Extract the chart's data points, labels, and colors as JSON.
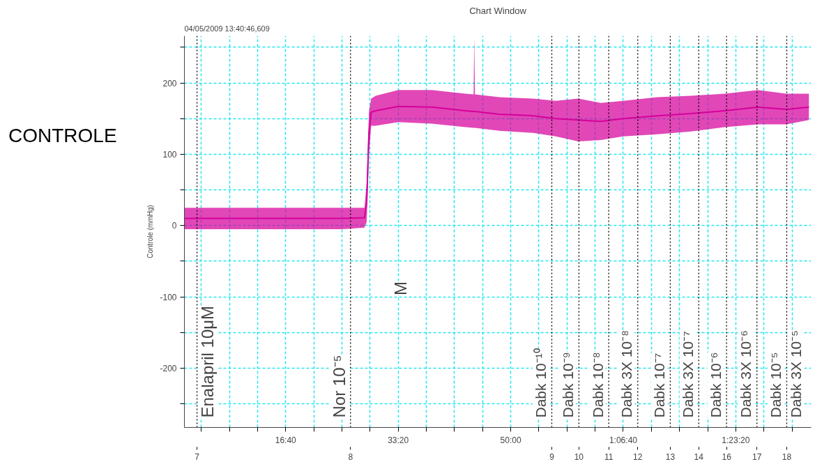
{
  "chart_data": {
    "type": "line",
    "title": "Chart Window",
    "subtitle": "04/05/2009 13:40:46,609",
    "ylabel": "Controle (mmHg)",
    "x": [
      100,
      500,
      1000,
      1500,
      1700,
      1720,
      1740,
      1760,
      1800,
      2000,
      2300,
      2600,
      2670,
      2676,
      2682,
      2900,
      3200,
      3400,
      3600,
      3800,
      4000,
      4300,
      4600,
      4900,
      5200,
      5450,
      5650
    ],
    "series": [
      {
        "color": "#d6009b",
        "values": [
          10,
          10,
          10,
          10,
          11,
          32,
          130,
          159,
          161,
          167,
          166,
          161,
          160,
          160,
          160,
          156,
          154,
          150,
          148,
          146,
          150,
          154,
          157,
          161,
          166,
          163,
          166
        ],
        "lower": [
          -5,
          -5,
          -5,
          -5,
          -3,
          5,
          100,
          140,
          140,
          145,
          143,
          138,
          137,
          137,
          137,
          133,
          130,
          125,
          118,
          120,
          125,
          128,
          132,
          138,
          142,
          142,
          148
        ],
        "upper": [
          25,
          25,
          25,
          25,
          25,
          60,
          160,
          178,
          182,
          190,
          190,
          185,
          184,
          265,
          184,
          180,
          178,
          175,
          178,
          172,
          175,
          180,
          182,
          185,
          190,
          185,
          185
        ]
      }
    ],
    "xlim": [
      100,
      5670
    ],
    "ylim": [
      -283,
      266
    ],
    "xticks": [
      {
        "value": 250,
        "label": null
      },
      {
        "value": 500,
        "label": null
      },
      {
        "value": 750,
        "label": null
      },
      {
        "value": 1000,
        "label": "16:40"
      },
      {
        "value": 1250,
        "label": null
      },
      {
        "value": 1500,
        "label": null
      },
      {
        "value": 1750,
        "label": null
      },
      {
        "value": 2000,
        "label": "33:20"
      },
      {
        "value": 2250,
        "label": null
      },
      {
        "value": 2500,
        "label": null
      },
      {
        "value": 2750,
        "label": null
      },
      {
        "value": 3000,
        "label": "50:00"
      },
      {
        "value": 3250,
        "label": null
      },
      {
        "value": 3500,
        "label": null
      },
      {
        "value": 3750,
        "label": null
      },
      {
        "value": 4000,
        "label": "1:06:40"
      },
      {
        "value": 4250,
        "label": null
      },
      {
        "value": 4500,
        "label": null
      },
      {
        "value": 4750,
        "label": null
      },
      {
        "value": 5000,
        "label": "1:23:20"
      },
      {
        "value": 5250,
        "label": null
      },
      {
        "value": 5500,
        "label": null
      }
    ],
    "yticks": [
      {
        "value": -250,
        "label": null
      },
      -200,
      {
        "value": -150,
        "label": null
      },
      -100,
      {
        "value": -50,
        "label": null
      },
      0,
      {
        "value": 50,
        "label": null
      },
      100,
      {
        "value": 150,
        "label": null
      },
      200,
      {
        "value": 250,
        "label": null
      }
    ],
    "grid": true,
    "ref_lines": [
      {
        "axis": "x",
        "value": 212,
        "label": "Enalapril 10μM",
        "color": "#000000",
        "line_style": "dotted"
      },
      {
        "axis": "x",
        "value": 1576,
        "label": "Nor 10⁻⁵",
        "color": "#000000",
        "line_style": "dotted"
      },
      {
        "axis": "x",
        "value": 3365,
        "label": "Dabk 10⁻¹⁰",
        "color": "#000000",
        "line_style": "dotted"
      },
      {
        "axis": "x",
        "value": 3606,
        "label": "Dabk 10⁻⁹",
        "color": "#000000",
        "line_style": "dotted"
      },
      {
        "axis": "x",
        "value": 3871,
        "label": "Dabk 10⁻⁸",
        "color": "#000000",
        "line_style": "dotted"
      },
      {
        "axis": "x",
        "value": 4129,
        "label": "Dabk 3X 10⁻⁸",
        "color": "#000000",
        "line_style": "dotted"
      },
      {
        "axis": "x",
        "value": 4418,
        "label": "Dabk 10⁻⁷",
        "color": "#000000",
        "line_style": "dotted"
      },
      {
        "axis": "x",
        "value": 4671,
        "label": "Dabk 3X 10⁻⁷",
        "color": "#000000",
        "line_style": "dotted"
      },
      {
        "axis": "x",
        "value": 4918,
        "label": "Dabk 10⁻⁶",
        "color": "#000000",
        "line_style": "dotted"
      },
      {
        "axis": "x",
        "value": 5188,
        "label": "Dabk 3X 10⁻⁶",
        "color": "#000000",
        "line_style": "dotted"
      },
      {
        "axis": "x",
        "value": 5453,
        "label": "Dabk 10⁻⁵",
        "color": "#000000",
        "line_style": "dotted"
      }
    ],
    "annotations": [
      "CONTROLE",
      "M",
      "Dabk 3X 10⁻⁵",
      "7",
      "8",
      "9",
      "10",
      "11",
      "12",
      "13",
      "14",
      "16",
      "17",
      "18"
    ]
  }
}
